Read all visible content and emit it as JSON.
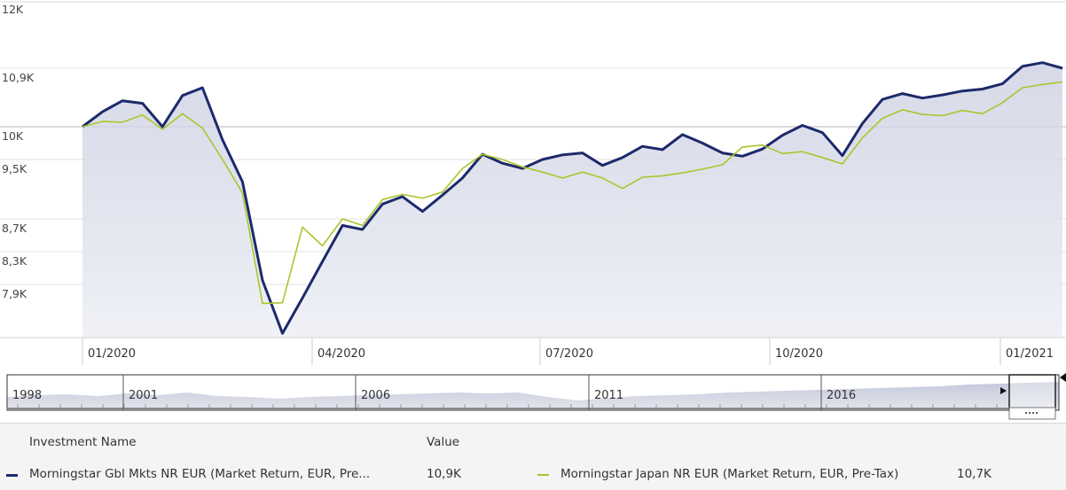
{
  "chart_data": {
    "type": "line",
    "y_axis": {
      "ticks": [
        "12K",
        "10,9K",
        "10K",
        "9,5K",
        "8,7K",
        "8,3K",
        "7,9K"
      ],
      "tick_values": [
        12000,
        10900,
        10000,
        9500,
        8700,
        8300,
        7900
      ]
    },
    "x_axis": {
      "ticks": [
        "01/2020",
        "04/2020",
        "07/2020",
        "10/2020",
        "01/2021"
      ]
    },
    "series": [
      {
        "name": "Morningstar Gbl Mkts NR EUR (Market Return, EUR, Pre...",
        "color": "#1c2a6b",
        "area": true,
        "values": [
          10000,
          10230,
          10400,
          10360,
          10000,
          10480,
          10600,
          9800,
          9200,
          7950,
          7180,
          7700,
          8180,
          8620,
          8570,
          8900,
          9000,
          8800,
          9020,
          9250,
          9580,
          9450,
          9380,
          9500,
          9570,
          9600,
          9420,
          9530,
          9700,
          9650,
          9880,
          9750,
          9600,
          9550,
          9660,
          9870,
          10020,
          9910,
          9560,
          10050,
          10420,
          10510,
          10440,
          10490,
          10550,
          10580,
          10660,
          10930,
          10990,
          10900
        ]
      },
      {
        "name": "Morningstar Japan NR EUR (Market Return, EUR, Pre-Tax)",
        "color": "#a9c62b",
        "area": false,
        "values": [
          10000,
          10080,
          10070,
          10180,
          9960,
          10200,
          9980,
          9500,
          9050,
          7620,
          7630,
          8600,
          8370,
          8700,
          8620,
          8960,
          9030,
          8980,
          9060,
          9380,
          9580,
          9500,
          9400,
          9330,
          9250,
          9330,
          9250,
          9110,
          9260,
          9280,
          9320,
          9370,
          9430,
          9690,
          9720,
          9590,
          9620,
          9530,
          9440,
          9830,
          10130,
          10260,
          10190,
          10170,
          10250,
          10200,
          10370,
          10600,
          10650,
          10690
        ]
      }
    ],
    "navigator": {
      "labels": [
        "1998",
        "2001",
        "2006",
        "2011",
        "2016"
      ]
    },
    "legend": {
      "headers": {
        "name": "Investment Name",
        "value": "Value"
      },
      "items": [
        {
          "name": "Morningstar Gbl Mkts NR EUR (Market Return, EUR, Pre...",
          "value": "10,9K"
        },
        {
          "name": "Morningstar Japan NR EUR (Market Return, EUR, Pre-Tax)",
          "value": "10,7K"
        }
      ]
    }
  }
}
